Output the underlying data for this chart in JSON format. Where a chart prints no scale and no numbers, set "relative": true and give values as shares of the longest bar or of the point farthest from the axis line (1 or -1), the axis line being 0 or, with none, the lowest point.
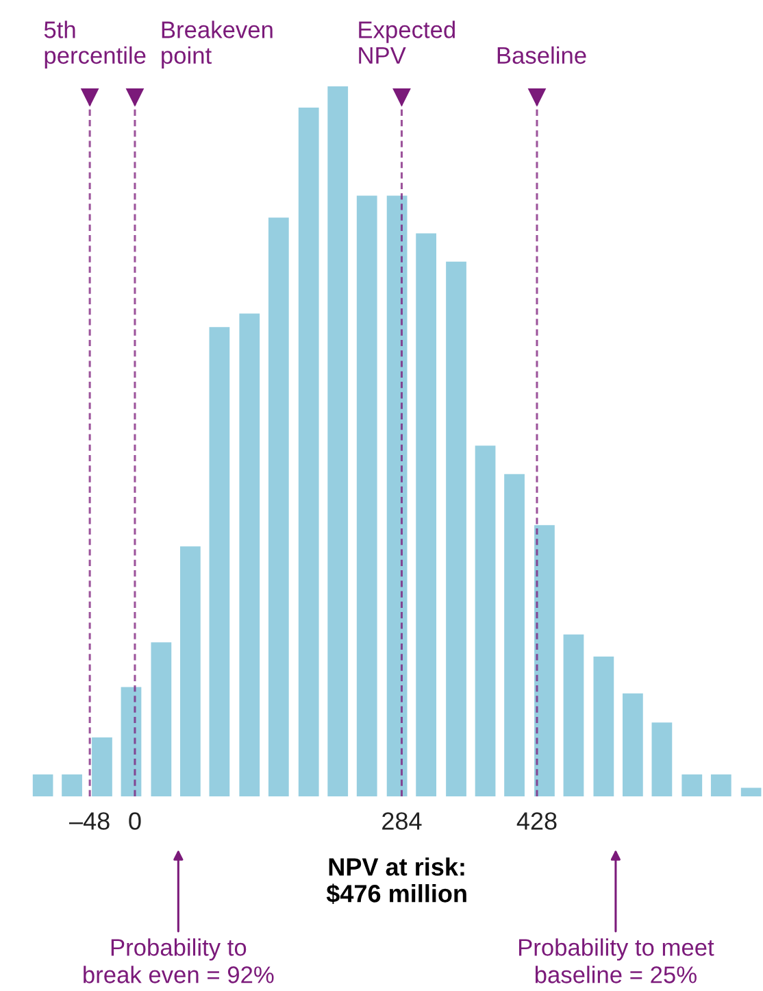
{
  "chart_data": {
    "type": "bar",
    "relative": true,
    "x": [
      -98,
      -67,
      -35,
      -4,
      28,
      59,
      90,
      122,
      153,
      185,
      216,
      247,
      279,
      310,
      342,
      373,
      404,
      436,
      467,
      499,
      530,
      561,
      593,
      624,
      656
    ],
    "values": [
      0.031,
      0.031,
      0.083,
      0.154,
      0.217,
      0.352,
      0.661,
      0.68,
      0.815,
      0.97,
      1,
      0.846,
      0.846,
      0.793,
      0.753,
      0.494,
      0.454,
      0.382,
      0.228,
      0.197,
      0.145,
      0.104,
      0.031,
      0.031,
      0.012
    ],
    "color": "#96cee0",
    "xlim": [
      -109,
      667
    ],
    "xticks": [
      {
        "value": -48,
        "label": "–48"
      },
      0,
      284,
      428
    ],
    "xlabel": "NPV at risk:\n$476 million",
    "ref_lines": [
      {
        "axis": "x",
        "value": -48,
        "label": "5th\npercentile",
        "color": "#7b1a7a",
        "line_style": "dashed"
      },
      {
        "axis": "x",
        "value": 0,
        "label": "Breakeven\npoint",
        "color": "#7b1a7a",
        "line_style": "dashed"
      },
      {
        "axis": "x",
        "value": 284,
        "label": "Expected\nNPV",
        "color": "#7b1a7a",
        "line_style": "dashed"
      },
      {
        "axis": "x",
        "value": 428,
        "label": "Baseline",
        "color": "#7b1a7a",
        "line_style": "dashed"
      }
    ],
    "annotations": [
      "Probability to\nbreak even = 92%",
      "Probability to meet\nbaseline = 25%"
    ],
    "grid": false,
    "legend": false
  }
}
